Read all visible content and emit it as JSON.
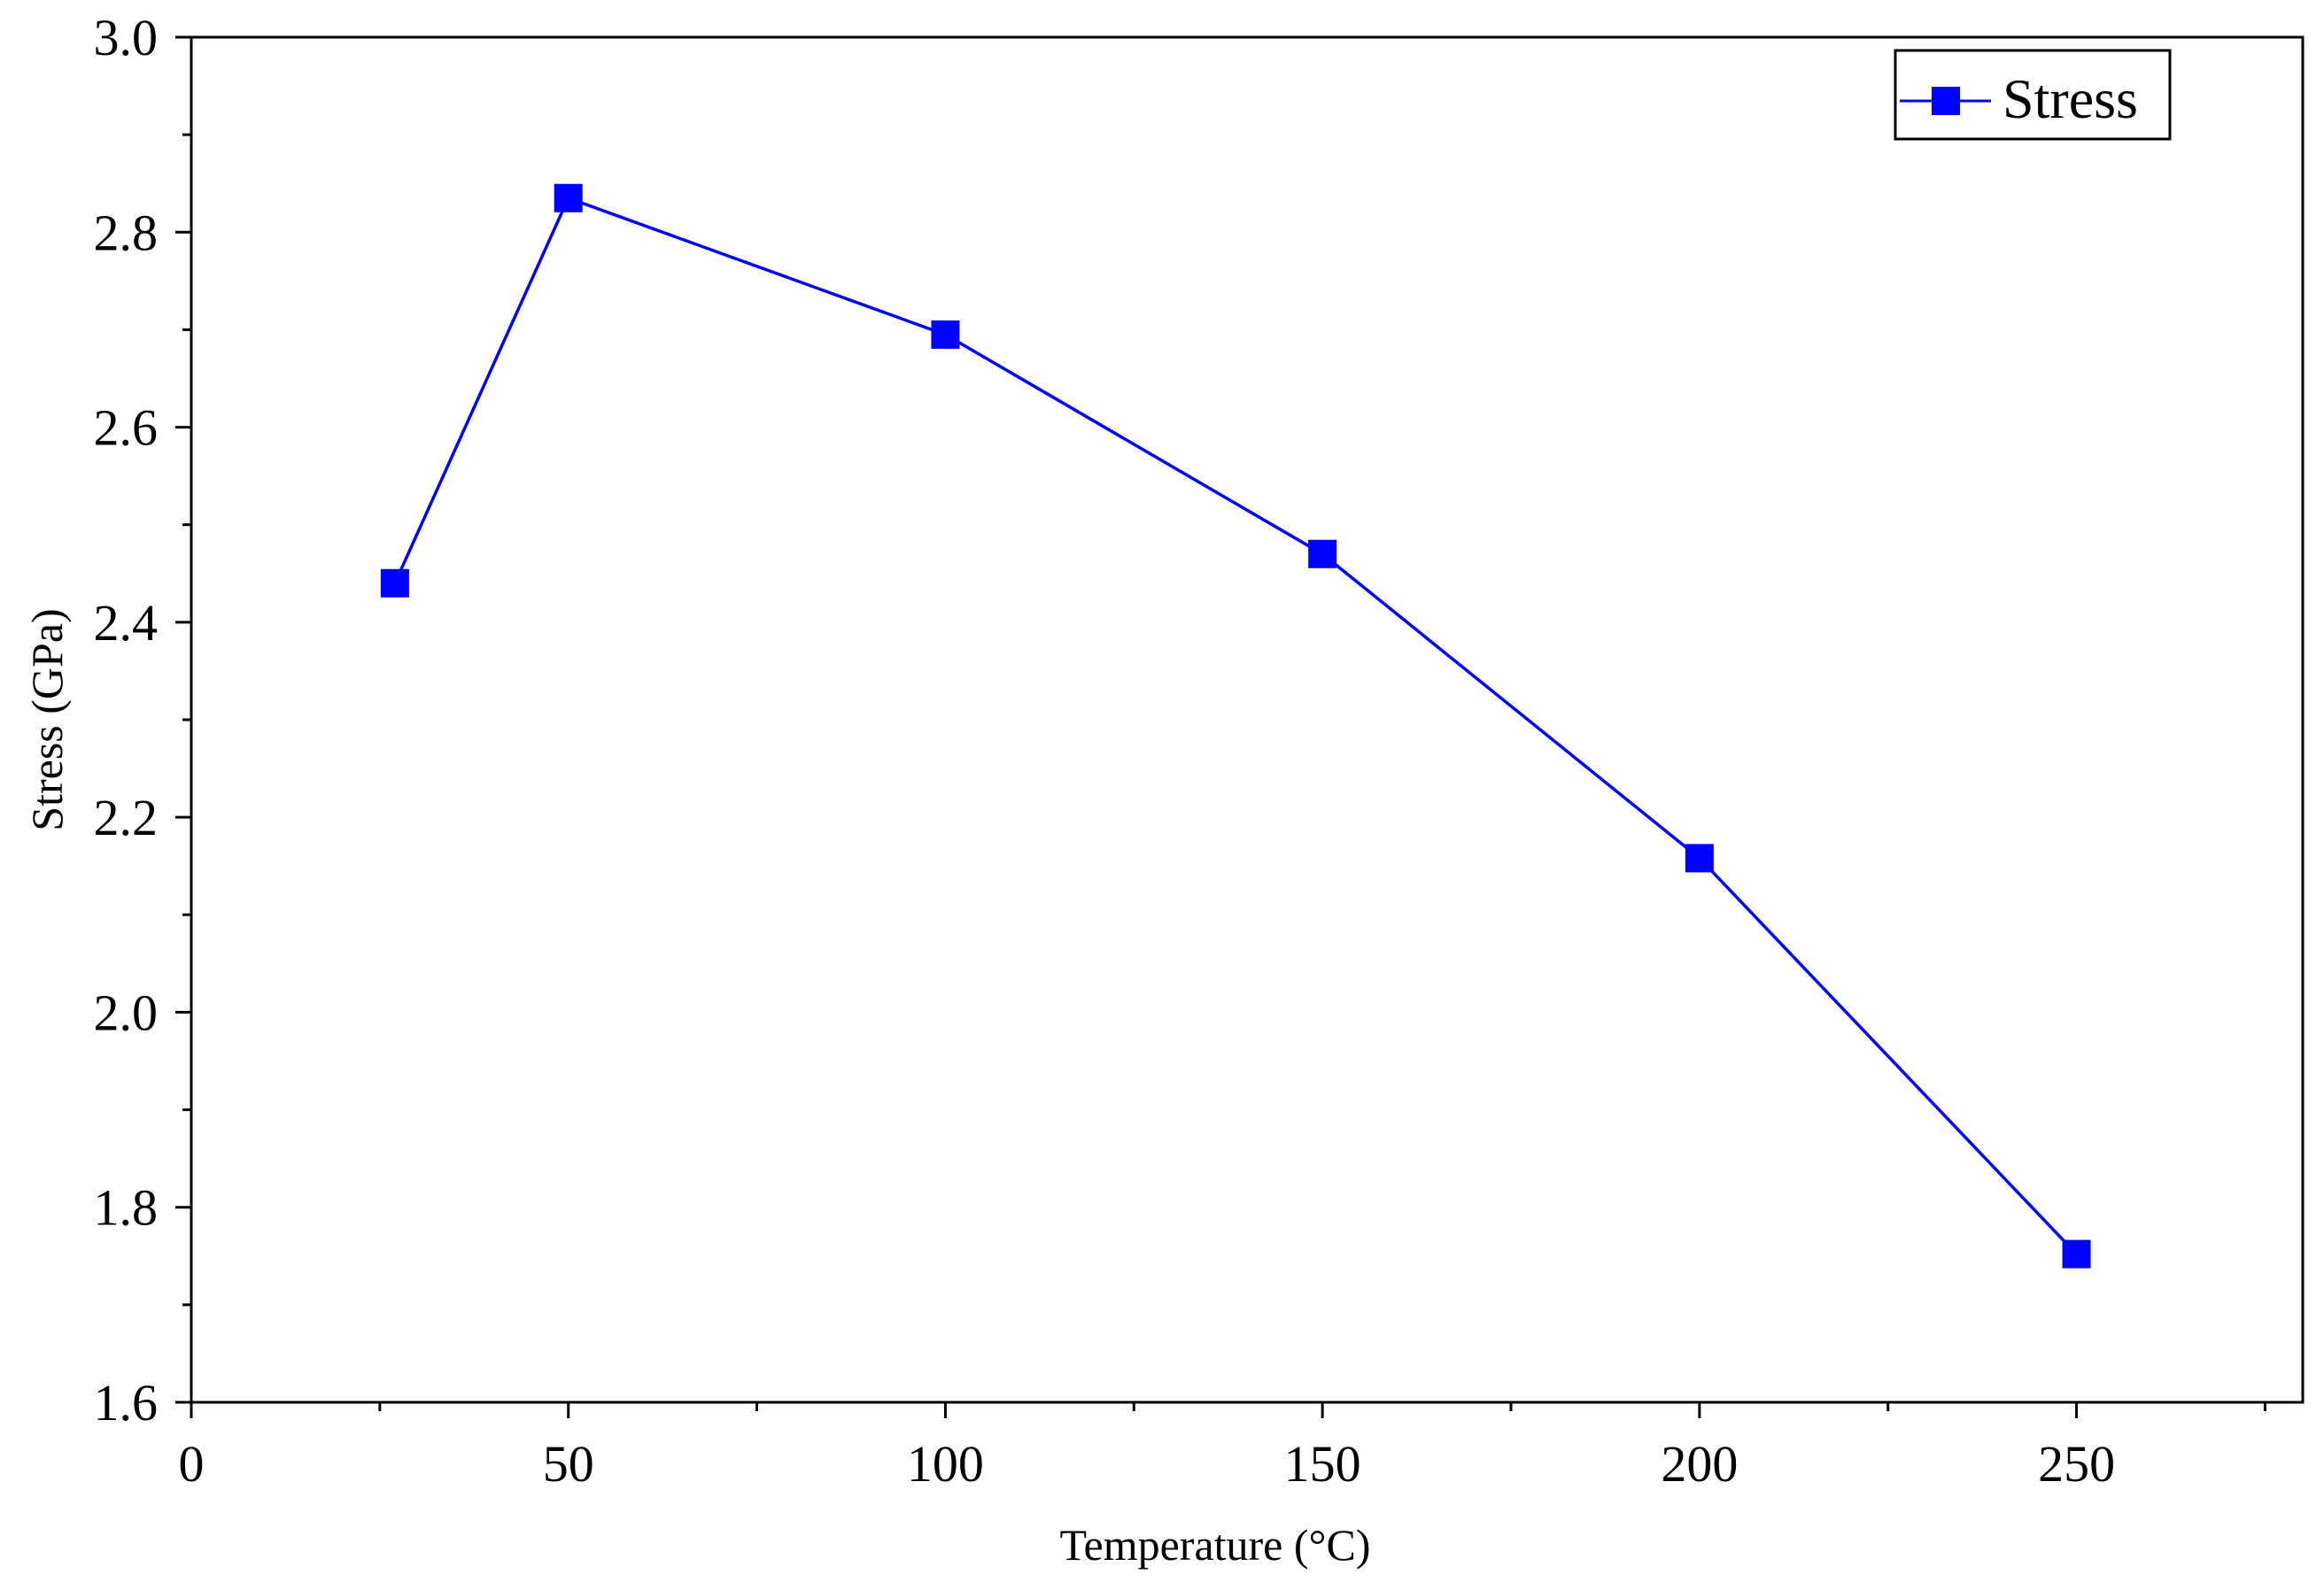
{
  "chart_data": {
    "type": "line",
    "xlabel": "Temperature (°C)",
    "ylabel": "Stress (GPa)",
    "xlim": [
      0,
      280
    ],
    "ylim": [
      1.6,
      3.0
    ],
    "x_ticks": [
      0,
      50,
      100,
      150,
      200,
      250
    ],
    "x_tick_labels": [
      "0",
      "50",
      "100",
      "150",
      "200",
      "250"
    ],
    "x_minor_ticks": [
      25,
      75,
      125,
      175,
      225,
      275
    ],
    "y_ticks": [
      1.6,
      1.8,
      2.0,
      2.2,
      2.4,
      2.6,
      2.8,
      3.0
    ],
    "y_tick_labels": [
      "1.6",
      "1.8",
      "2.0",
      "2.2",
      "2.4",
      "2.6",
      "2.8",
      "3.0"
    ],
    "y_minor_ticks": [
      1.7,
      1.9,
      2.1,
      2.3,
      2.5,
      2.7,
      2.9
    ],
    "grid": false,
    "legend_position": "top-right",
    "series": [
      {
        "name": "Stress",
        "color": "#0000ff",
        "marker": "square",
        "points": [
          {
            "x": 27,
            "y": 2.44
          },
          {
            "x": 50,
            "y": 2.835
          },
          {
            "x": 100,
            "y": 2.695
          },
          {
            "x": 150,
            "y": 2.47
          },
          {
            "x": 200,
            "y": 2.158
          },
          {
            "x": 250,
            "y": 1.752
          }
        ]
      }
    ]
  }
}
